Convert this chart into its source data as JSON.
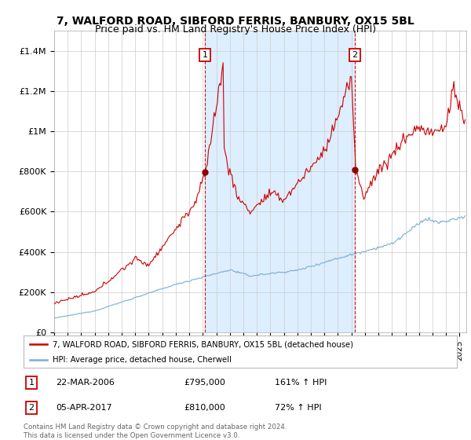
{
  "title": "7, WALFORD ROAD, SIBFORD FERRIS, BANBURY, OX15 5BL",
  "subtitle": "Price paid vs. HM Land Registry's House Price Index (HPI)",
  "ylim": [
    0,
    1500000
  ],
  "yticks": [
    0,
    200000,
    400000,
    600000,
    800000,
    1000000,
    1200000,
    1400000
  ],
  "ytick_labels": [
    "£0",
    "£200K",
    "£400K",
    "£600K",
    "£800K",
    "£1M",
    "£1.2M",
    "£1.4M"
  ],
  "xlim_start": 1995.0,
  "xlim_end": 2025.5,
  "red_line_color": "#cc0000",
  "blue_line_color": "#7aaed6",
  "shade_color": "#ddeeff",
  "transaction1": {
    "date_x": 2006.17,
    "price": 795000,
    "label": "1"
  },
  "transaction2": {
    "date_x": 2017.25,
    "price": 810000,
    "label": "2"
  },
  "legend_red_label": "7, WALFORD ROAD, SIBFORD FERRIS, BANBURY, OX15 5BL (detached house)",
  "legend_blue_label": "HPI: Average price, detached house, Cherwell",
  "table_entries": [
    {
      "num": "1",
      "date": "22-MAR-2006",
      "price": "£795,000",
      "hpi": "161% ↑ HPI"
    },
    {
      "num": "2",
      "date": "05-APR-2017",
      "price": "£810,000",
      "hpi": "72% ↑ HPI"
    }
  ],
  "footnote": "Contains HM Land Registry data © Crown copyright and database right 2024.\nThis data is licensed under the Open Government Licence v3.0.",
  "bg_color": "#ffffff",
  "grid_color": "#cccccc",
  "title_fontsize": 10,
  "subtitle_fontsize": 9,
  "axis_fontsize": 8
}
